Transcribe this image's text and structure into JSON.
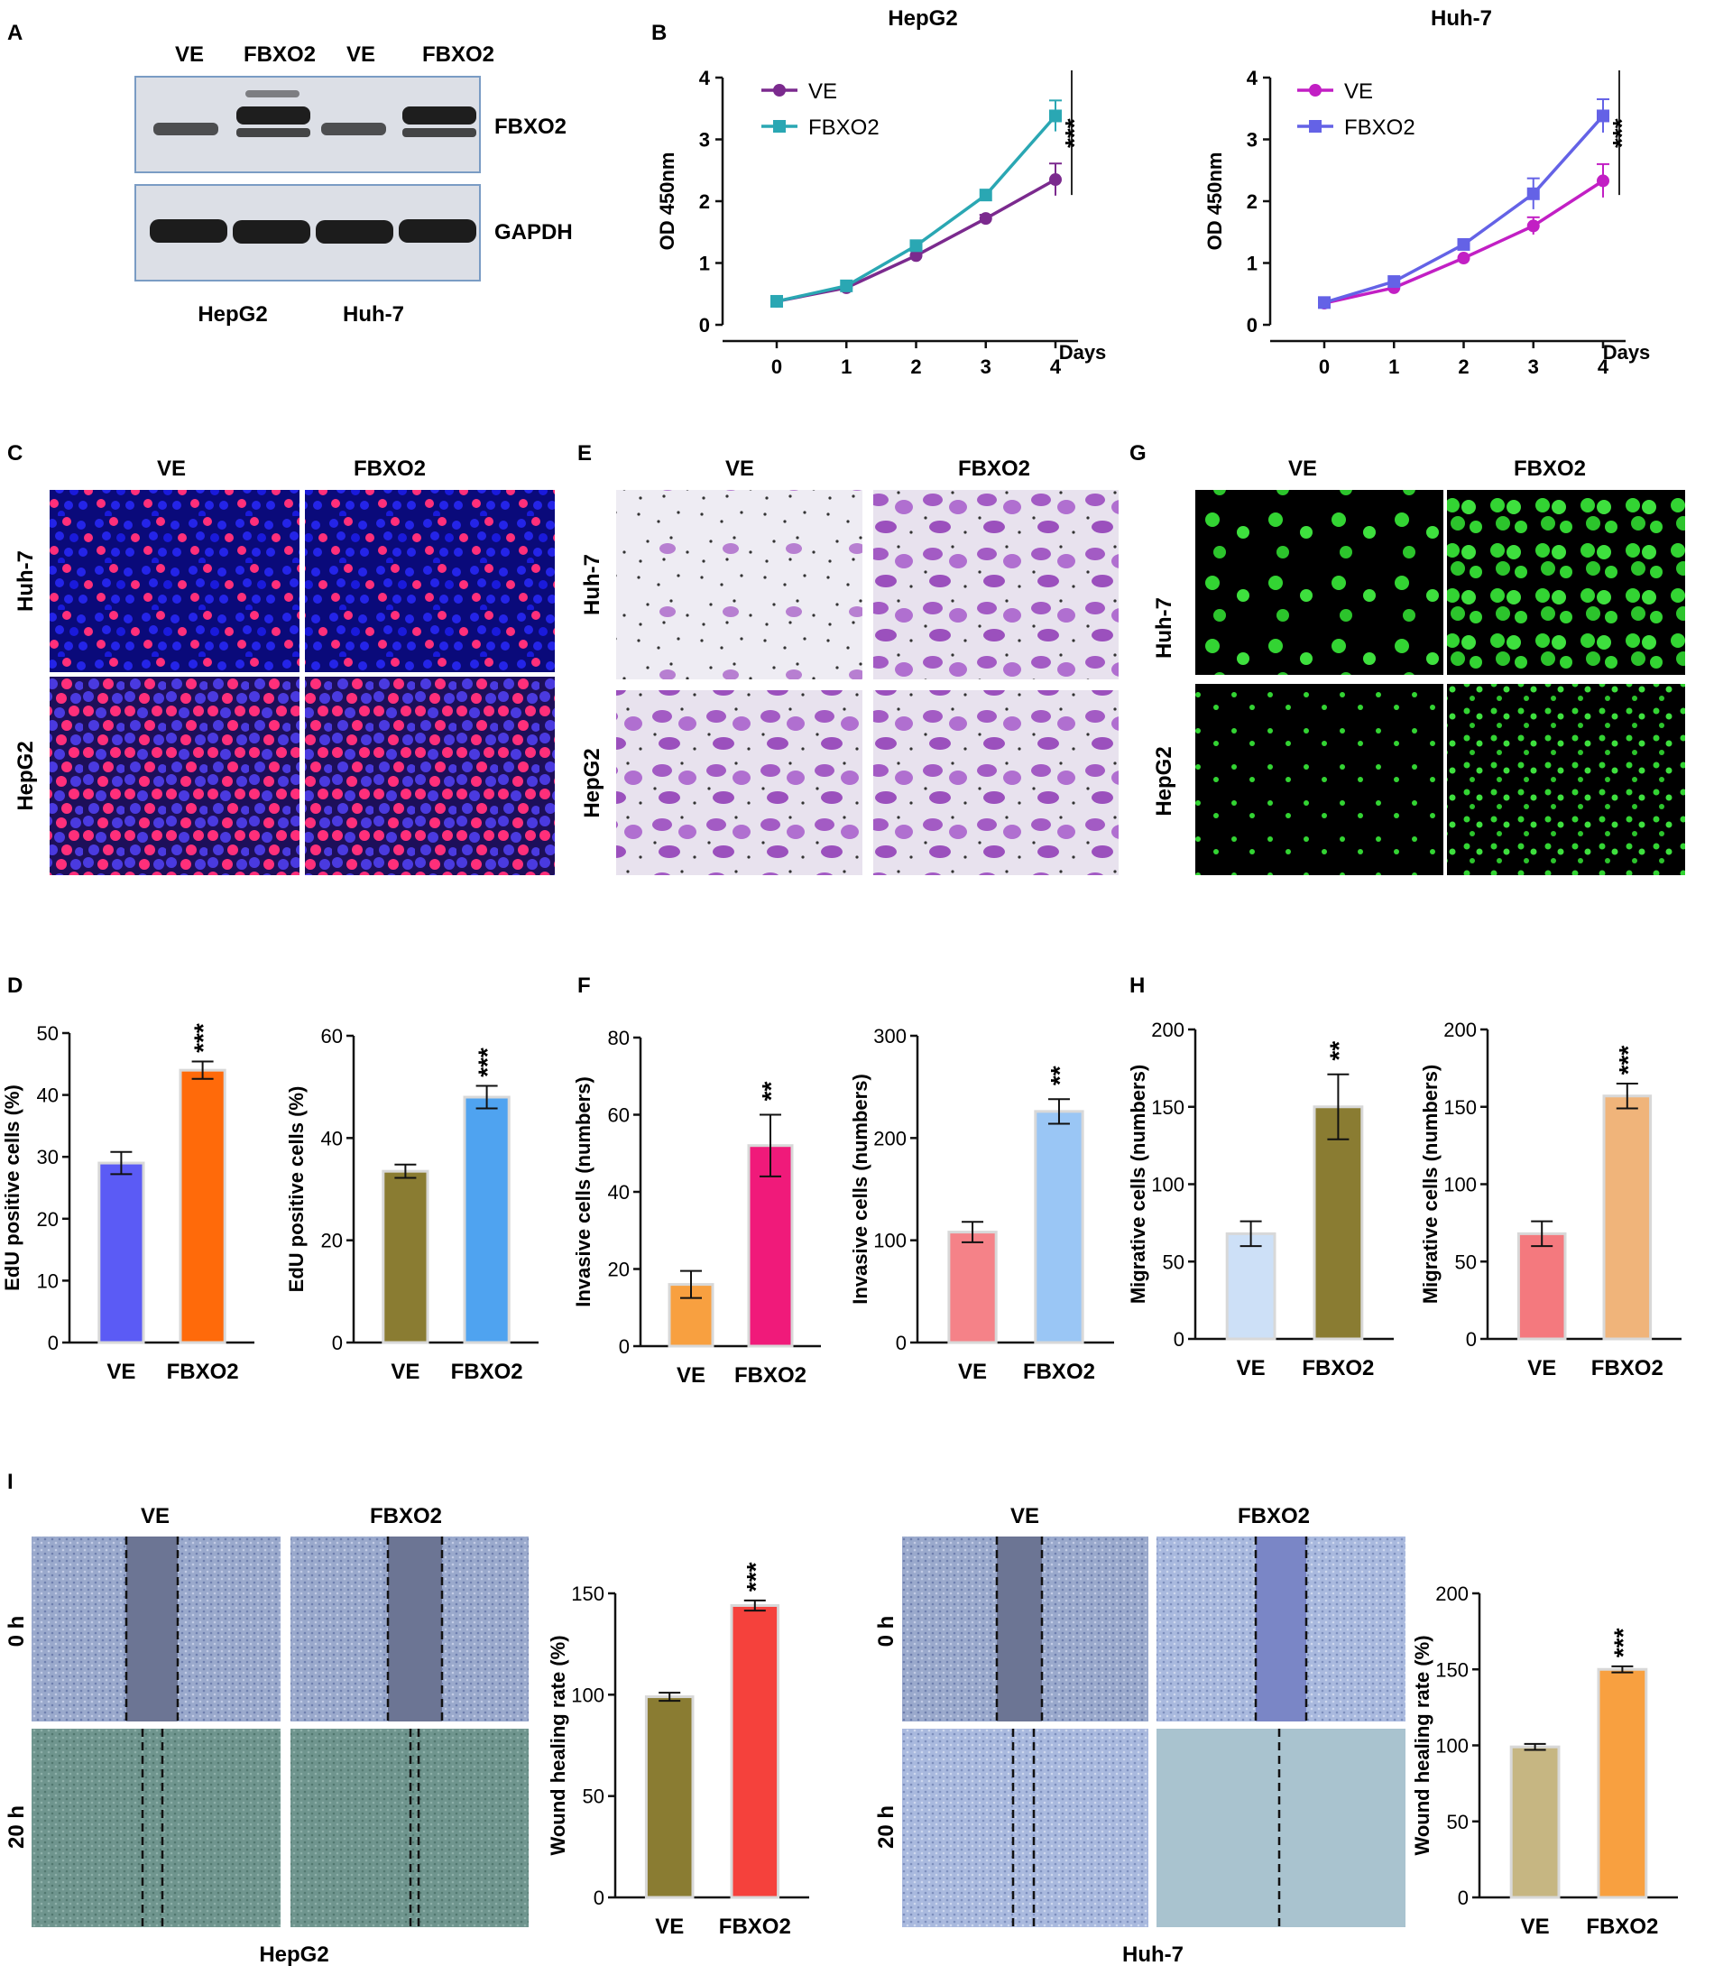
{
  "panel_letters": [
    "A",
    "B",
    "C",
    "D",
    "E",
    "F",
    "G",
    "H",
    "I"
  ],
  "western": {
    "lanes": [
      "VE",
      "FBXO2",
      "VE",
      "FBXO2"
    ],
    "bands": [
      "FBXO2",
      "GAPDH"
    ],
    "cells": [
      "HepG2",
      "Huh-7"
    ]
  },
  "cols": {
    "ve": "VE",
    "fbxo2": "FBXO2"
  },
  "rows": {
    "huh7": "Huh-7",
    "hepg2": "HepG2"
  },
  "wound": {
    "times": [
      "0 h",
      "20 h"
    ],
    "cells": [
      "HepG2",
      "Huh-7"
    ]
  },
  "colors": {
    "purple_line": "#7b2a8e",
    "teal_line": "#2aa7b3",
    "magenta_line": "#c21fc4",
    "blue_square": "#6462e6",
    "edu_red": "#ff2f7a",
    "edu_blue": "#1a1adb",
    "transwell_stain": "#a35bc4",
    "calcein_green": "#33d433"
  },
  "chart_data": [
    {
      "id": "B1",
      "type": "line",
      "title": "HepG2",
      "xlabel": "Days",
      "ylabel": "OD 450nm",
      "x": [
        0,
        1,
        2,
        3,
        4
      ],
      "ylim": [
        0,
        4
      ],
      "yticks": [
        0,
        1,
        2,
        3,
        4
      ],
      "series": [
        {
          "name": "VE",
          "marker": "circle",
          "color": "#7b2a8e",
          "values": [
            0.38,
            0.6,
            1.12,
            1.72,
            2.35
          ],
          "err": [
            0.03,
            0.03,
            0.04,
            0.06,
            0.26
          ]
        },
        {
          "name": "FBXO2",
          "marker": "square",
          "color": "#2aa7b3",
          "values": [
            0.38,
            0.63,
            1.28,
            2.1,
            3.38
          ],
          "err": [
            0.03,
            0.03,
            0.04,
            0.05,
            0.25
          ]
        }
      ],
      "annotation": "***"
    },
    {
      "id": "B2",
      "type": "line",
      "title": "Huh-7",
      "xlabel": "Days",
      "ylabel": "OD 450nm",
      "x": [
        0,
        1,
        2,
        3,
        4
      ],
      "ylim": [
        0,
        4
      ],
      "yticks": [
        0,
        1,
        2,
        3,
        4
      ],
      "series": [
        {
          "name": "VE",
          "marker": "circle",
          "color": "#c21fc4",
          "values": [
            0.35,
            0.6,
            1.08,
            1.6,
            2.33
          ],
          "err": [
            0.03,
            0.03,
            0.05,
            0.14,
            0.27
          ]
        },
        {
          "name": "FBXO2",
          "marker": "square",
          "color": "#6462e6",
          "values": [
            0.36,
            0.7,
            1.3,
            2.12,
            3.38
          ],
          "err": [
            0.03,
            0.04,
            0.05,
            0.25,
            0.27
          ]
        }
      ],
      "annotation": "***"
    },
    {
      "id": "D1",
      "type": "bar",
      "categories": [
        "VE",
        "FBXO2"
      ],
      "values": [
        29,
        44
      ],
      "err": [
        1.8,
        1.4
      ],
      "colors": [
        "#5b5bf5",
        "#ff6a0a"
      ],
      "ylabel": "EdU positive cells (%)",
      "ylim": [
        0,
        50
      ],
      "yticks": [
        0,
        10,
        20,
        30,
        40,
        50
      ],
      "annotation": "***"
    },
    {
      "id": "D2",
      "type": "bar",
      "categories": [
        "VE",
        "FBXO2"
      ],
      "values": [
        33.5,
        48
      ],
      "err": [
        1.3,
        2.2
      ],
      "colors": [
        "#8a7c32",
        "#4fa3f0"
      ],
      "ylabel": "EdU positive cells (%)",
      "ylim": [
        0,
        60
      ],
      "yticks": [
        0,
        20,
        40,
        60
      ],
      "annotation": "***"
    },
    {
      "id": "F1",
      "type": "bar",
      "categories": [
        "VE",
        "FBXO2"
      ],
      "values": [
        16,
        52
      ],
      "err": [
        3.5,
        8
      ],
      "colors": [
        "#f8a040",
        "#f01a7a"
      ],
      "ylabel": "Invasive cells (numbers)",
      "ylim": [
        0,
        80
      ],
      "yticks": [
        0,
        20,
        40,
        60,
        80
      ],
      "annotation": "**"
    },
    {
      "id": "F2",
      "type": "bar",
      "categories": [
        "VE",
        "FBXO2"
      ],
      "values": [
        108,
        226
      ],
      "err": [
        10,
        12
      ],
      "colors": [
        "#f58288",
        "#9ac6f5"
      ],
      "ylabel": "Invasive cells (numbers)",
      "ylim": [
        0,
        300
      ],
      "yticks": [
        0,
        100,
        200,
        300
      ],
      "annotation": "**"
    },
    {
      "id": "H1",
      "type": "bar",
      "categories": [
        "VE",
        "FBXO2"
      ],
      "values": [
        68,
        150
      ],
      "err": [
        8,
        21
      ],
      "colors": [
        "#cde0f7",
        "#8a7c32"
      ],
      "ylabel": "Migrative cells (numbers)",
      "ylim": [
        0,
        200
      ],
      "yticks": [
        0,
        50,
        100,
        150,
        200
      ],
      "annotation": "**"
    },
    {
      "id": "H2",
      "type": "bar",
      "categories": [
        "VE",
        "FBXO2"
      ],
      "values": [
        68,
        157
      ],
      "err": [
        8,
        8
      ],
      "colors": [
        "#f4797e",
        "#f0b47a"
      ],
      "ylabel": "Migrative cells (numbers)",
      "ylim": [
        0,
        200
      ],
      "yticks": [
        0,
        50,
        100,
        150,
        200
      ],
      "annotation": "***"
    },
    {
      "id": "I1",
      "type": "bar",
      "categories": [
        "VE",
        "FBXO2"
      ],
      "values": [
        99,
        144
      ],
      "err": [
        2,
        2.5
      ],
      "colors": [
        "#8a7c32",
        "#f5413c"
      ],
      "ylabel": "Wound healing rate (%)",
      "ylim": [
        0,
        150
      ],
      "yticks": [
        0,
        50,
        100,
        150
      ],
      "annotation": "***"
    },
    {
      "id": "I2",
      "type": "bar",
      "categories": [
        "VE",
        "FBXO2"
      ],
      "values": [
        99,
        150
      ],
      "err": [
        2,
        2
      ],
      "colors": [
        "#c6b682",
        "#f8a040"
      ],
      "ylabel": "Wound healing rate (%)",
      "ylim": [
        0,
        200
      ],
      "yticks": [
        0,
        50,
        100,
        150,
        200
      ],
      "annotation": "***"
    }
  ]
}
